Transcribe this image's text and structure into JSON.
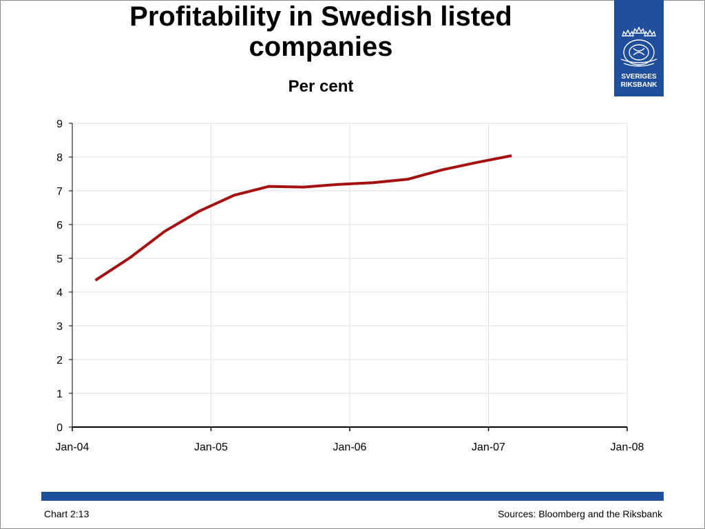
{
  "header": {
    "title_line1": "Profitability in Swedish listed",
    "title_line2": "companies",
    "subtitle": "Per cent"
  },
  "logo": {
    "line1": "SVERIGES",
    "line2": "RIKSBANK",
    "color": "#1f4e9c"
  },
  "chart_data": {
    "type": "line",
    "title": "Profitability in Swedish listed companies",
    "subtitle": "Per cent",
    "xlabel": "",
    "ylabel": "",
    "x_tick_labels": [
      "Jan-04",
      "Jan-05",
      "Jan-06",
      "Jan-07",
      "Jan-08"
    ],
    "y_ticks": [
      0,
      1,
      2,
      3,
      4,
      5,
      6,
      7,
      8,
      9
    ],
    "ylim": [
      0,
      9
    ],
    "xlim": [
      "2004-01",
      "2008-01"
    ],
    "grid": true,
    "series": [
      {
        "color": "#a50f0f",
        "x": [
          "2004-03",
          "2004-06",
          "2004-09",
          "2004-12",
          "2005-03",
          "2005-06",
          "2005-09",
          "2005-12",
          "2006-03",
          "2006-06",
          "2006-09",
          "2006-12",
          "2007-03"
        ],
        "values": [
          4.35,
          5.02,
          5.8,
          6.4,
          6.87,
          7.13,
          7.11,
          7.19,
          7.24,
          7.34,
          7.62,
          7.84,
          8.04
        ]
      }
    ]
  },
  "footer": {
    "chart_id": "Chart 2:13",
    "sources": "Sources: Bloomberg and the Riksbank",
    "bar_color": "#1f4e9c"
  }
}
